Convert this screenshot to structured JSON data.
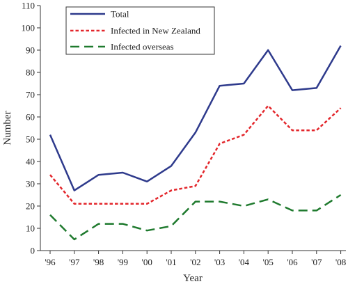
{
  "chart_data": {
    "type": "line",
    "xlabel": "Year",
    "ylabel": "Number",
    "categories": [
      "'96",
      "'97",
      "'98",
      "'99",
      "'00",
      "'01",
      "'02",
      "'03",
      "'04",
      "'05",
      "'06",
      "'07",
      "'08"
    ],
    "yticks": [
      0,
      10,
      20,
      30,
      40,
      50,
      60,
      70,
      80,
      90,
      100,
      110
    ],
    "ylim": [
      0,
      110
    ],
    "grid": false,
    "legend_position": "top-left",
    "series": [
      {
        "name": "Total",
        "color": "#2e3a8c",
        "dash": "solid",
        "values": [
          52,
          27,
          34,
          35,
          31,
          38,
          53,
          74,
          75,
          90,
          72,
          73,
          92
        ]
      },
      {
        "name": "Infected in New Zealand",
        "color": "#e3262b",
        "dash": "dotted",
        "values": [
          34,
          21,
          21,
          21,
          21,
          27,
          29,
          48,
          52,
          65,
          54,
          54,
          64
        ]
      },
      {
        "name": "Infected overseas",
        "color": "#1f7a2e",
        "dash": "dashed",
        "values": [
          16,
          5,
          12,
          12,
          9,
          11,
          22,
          22,
          20,
          23,
          18,
          18,
          25
        ]
      }
    ]
  }
}
